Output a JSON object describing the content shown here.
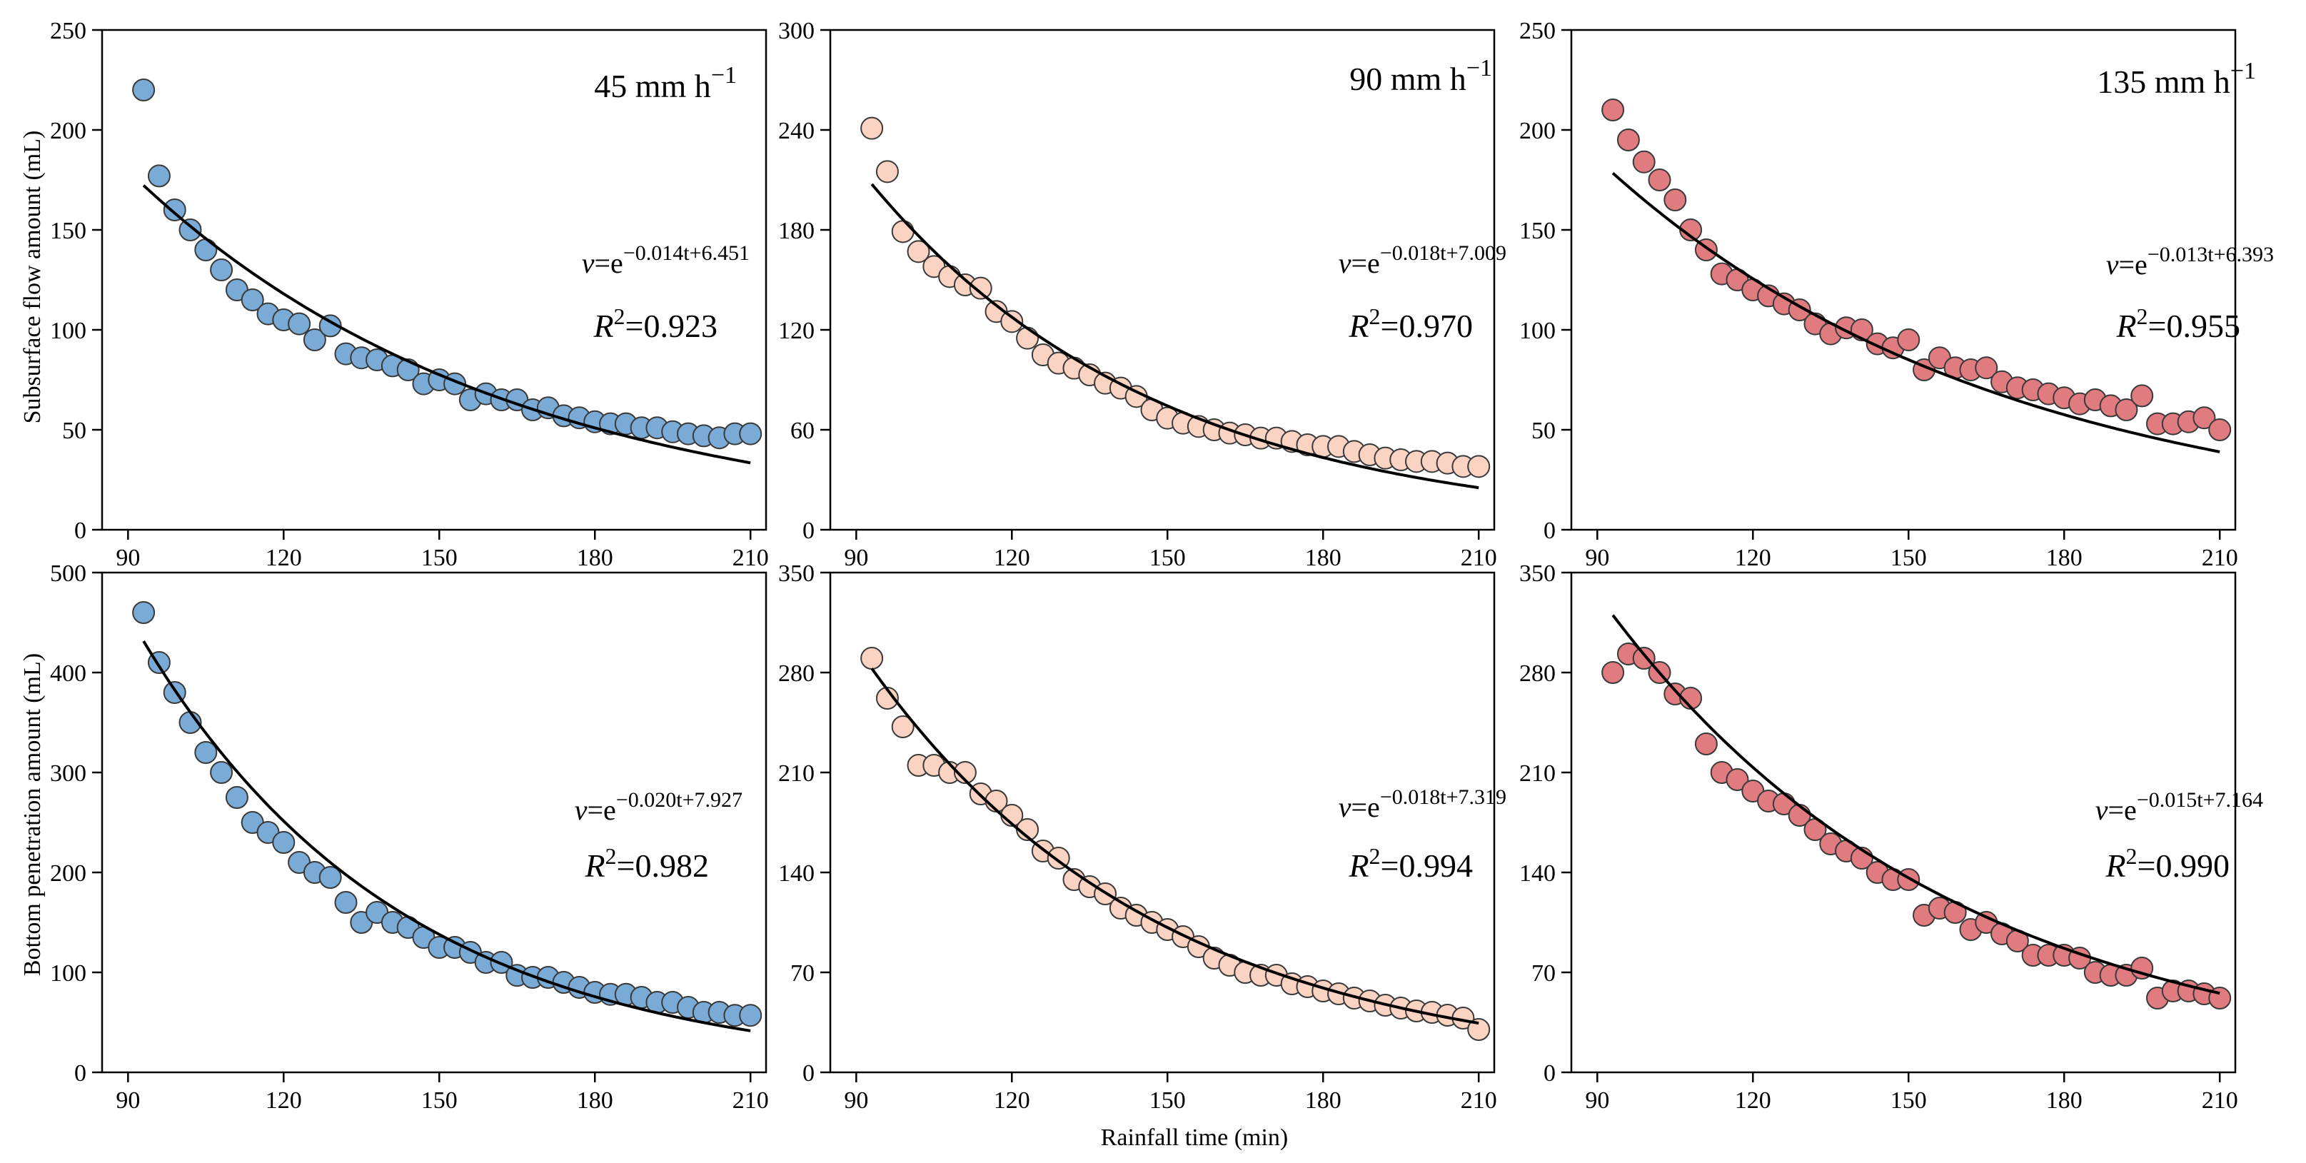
{
  "figure": {
    "xlabel": "Rainfall time (min)",
    "row_ylabels": [
      "Subsurface flow amount (mL)",
      "Bottom penetration amount (mL)"
    ],
    "colors": {
      "45": "#7aaad6",
      "90": "#fbd3c3",
      "135": "#e07b80",
      "point_stroke": "#3a3a3a",
      "fit_line": "#000000"
    }
  },
  "chart_data": [
    {
      "id": "subsurface-45",
      "type": "scatter",
      "rate_label": "45 mm h",
      "rate_unit_sup": "−1",
      "eq_prefix": "v",
      "eq_exp": "−0.014t+6.451",
      "r2_value": "=0.923",
      "ylim": [
        0,
        250
      ],
      "yticks": [
        0,
        50,
        100,
        150,
        200,
        250
      ],
      "xlim": [
        85,
        213
      ],
      "xticks": [
        90,
        120,
        150,
        180,
        210
      ],
      "color": "#7aaad6",
      "fit": {
        "a": -0.014,
        "b": 6.451,
        "x_range": [
          93,
          210
        ]
      },
      "series": [
        {
          "x": [
            93,
            96,
            99,
            102,
            105,
            108,
            111,
            114,
            117,
            120,
            123,
            126,
            129,
            132,
            135,
            138,
            141,
            144,
            147,
            150,
            153,
            156,
            159,
            162,
            165,
            168,
            171,
            174,
            177,
            180,
            183,
            186,
            189,
            192,
            195,
            198,
            201,
            204,
            207,
            210
          ],
          "y": [
            220,
            177,
            160,
            150,
            140,
            130,
            120,
            115,
            108,
            105,
            103,
            95,
            102,
            88,
            86,
            85,
            82,
            80,
            73,
            75,
            73,
            65,
            68,
            65,
            65,
            60,
            61,
            57,
            56,
            54,
            53,
            53,
            51,
            51,
            49,
            48,
            47,
            46,
            48,
            48
          ]
        }
      ]
    },
    {
      "id": "subsurface-90",
      "type": "scatter",
      "rate_label": "90 mm h",
      "rate_unit_sup": "−1",
      "eq_prefix": "v",
      "eq_exp": "−0.018t+7.009",
      "r2_value": "=0.970",
      "ylim": [
        0,
        300
      ],
      "yticks": [
        0,
        60,
        120,
        180,
        240,
        300
      ],
      "xlim": [
        85,
        213
      ],
      "xticks": [
        90,
        120,
        150,
        180,
        210
      ],
      "color": "#fbd3c3",
      "fit": {
        "a": -0.018,
        "b": 7.009,
        "x_range": [
          93,
          210
        ]
      },
      "series": [
        {
          "x": [
            93,
            96,
            99,
            102,
            105,
            108,
            111,
            114,
            117,
            120,
            123,
            126,
            129,
            132,
            135,
            138,
            141,
            144,
            147,
            150,
            153,
            156,
            159,
            162,
            165,
            168,
            171,
            174,
            177,
            180,
            183,
            186,
            189,
            192,
            195,
            198,
            201,
            204,
            207,
            210
          ],
          "y": [
            241,
            215,
            179,
            167,
            158,
            152,
            147,
            145,
            131,
            125,
            115,
            105,
            100,
            97,
            93,
            88,
            85,
            80,
            72,
            67,
            64,
            62,
            60,
            58,
            57,
            55,
            55,
            53,
            51,
            50,
            50,
            47,
            45,
            43,
            42,
            41,
            41,
            40,
            38,
            38
          ]
        }
      ]
    },
    {
      "id": "subsurface-135",
      "type": "scatter",
      "rate_label": "135 mm h",
      "rate_unit_sup": "−1",
      "eq_prefix": "v",
      "eq_exp": "−0.013t+6.393",
      "r2_value": "=0.955",
      "ylim": [
        0,
        250
      ],
      "yticks": [
        0,
        50,
        100,
        150,
        200,
        250
      ],
      "xlim": [
        85,
        213
      ],
      "xticks": [
        90,
        120,
        150,
        180,
        210
      ],
      "color": "#e07b80",
      "fit": {
        "a": -0.013,
        "b": 6.393,
        "x_range": [
          93,
          210
        ]
      },
      "series": [
        {
          "x": [
            93,
            96,
            99,
            102,
            105,
            108,
            111,
            114,
            117,
            120,
            123,
            126,
            129,
            132,
            135,
            138,
            141,
            144,
            147,
            150,
            153,
            156,
            159,
            162,
            165,
            168,
            171,
            174,
            177,
            180,
            183,
            186,
            189,
            192,
            195,
            198,
            201,
            204,
            207,
            210
          ],
          "y": [
            210,
            195,
            184,
            175,
            165,
            150,
            140,
            128,
            125,
            120,
            117,
            113,
            110,
            103,
            98,
            101,
            100,
            93,
            91,
            95,
            80,
            86,
            81,
            80,
            81,
            74,
            71,
            70,
            68,
            66,
            63,
            65,
            62,
            60,
            67,
            53,
            53,
            54,
            56,
            50
          ]
        }
      ]
    },
    {
      "id": "bottom-45",
      "type": "scatter",
      "eq_prefix": "v",
      "eq_exp": "−0.020t+7.927",
      "r2_value": "=0.982",
      "ylim": [
        0,
        500
      ],
      "yticks": [
        0,
        100,
        200,
        300,
        400,
        500
      ],
      "xlim": [
        85,
        213
      ],
      "xticks": [
        90,
        120,
        150,
        180,
        210
      ],
      "color": "#7aaad6",
      "fit": {
        "a": -0.02,
        "b": 7.927,
        "x_range": [
          93,
          210
        ]
      },
      "series": [
        {
          "x": [
            93,
            96,
            99,
            102,
            105,
            108,
            111,
            114,
            117,
            120,
            123,
            126,
            129,
            132,
            135,
            138,
            141,
            144,
            147,
            150,
            153,
            156,
            159,
            162,
            165,
            168,
            171,
            174,
            177,
            180,
            183,
            186,
            189,
            192,
            195,
            198,
            201,
            204,
            207,
            210
          ],
          "y": [
            460,
            410,
            380,
            350,
            320,
            300,
            275,
            250,
            240,
            230,
            210,
            200,
            195,
            170,
            150,
            160,
            150,
            145,
            135,
            125,
            125,
            120,
            110,
            110,
            97,
            95,
            95,
            90,
            85,
            80,
            78,
            78,
            75,
            70,
            70,
            65,
            60,
            60,
            57,
            57
          ]
        }
      ]
    },
    {
      "id": "bottom-90",
      "type": "scatter",
      "eq_prefix": "v",
      "eq_exp": "−0.018t+7.319",
      "r2_value": "=0.994",
      "ylim": [
        0,
        350
      ],
      "yticks": [
        0,
        70,
        140,
        210,
        280,
        350
      ],
      "xlim": [
        85,
        213
      ],
      "xticks": [
        90,
        120,
        150,
        180,
        210
      ],
      "color": "#fbd3c3",
      "fit": {
        "a": -0.018,
        "b": 7.319,
        "x_range": [
          93,
          210
        ]
      },
      "series": [
        {
          "x": [
            93,
            96,
            99,
            102,
            105,
            108,
            111,
            114,
            117,
            120,
            123,
            126,
            129,
            132,
            135,
            138,
            141,
            144,
            147,
            150,
            153,
            156,
            159,
            162,
            165,
            168,
            171,
            174,
            177,
            180,
            183,
            186,
            189,
            192,
            195,
            198,
            201,
            204,
            207,
            210
          ],
          "y": [
            290,
            262,
            242,
            215,
            215,
            210,
            210,
            195,
            190,
            180,
            170,
            155,
            150,
            135,
            130,
            125,
            115,
            110,
            105,
            100,
            95,
            88,
            80,
            75,
            70,
            68,
            68,
            62,
            60,
            57,
            55,
            52,
            50,
            47,
            45,
            43,
            42,
            40,
            38,
            30
          ]
        }
      ]
    },
    {
      "id": "bottom-135",
      "type": "scatter",
      "eq_prefix": "v",
      "eq_exp": "−0.015t+7.164",
      "r2_value": "=0.990",
      "ylim": [
        0,
        350
      ],
      "yticks": [
        0,
        70,
        140,
        210,
        280,
        350
      ],
      "xlim": [
        85,
        213
      ],
      "xticks": [
        90,
        120,
        150,
        180,
        210
      ],
      "color": "#e07b80",
      "fit": {
        "a": -0.015,
        "b": 7.164,
        "x_range": [
          93,
          210
        ]
      },
      "series": [
        {
          "x": [
            93,
            96,
            99,
            102,
            105,
            108,
            111,
            114,
            117,
            120,
            123,
            126,
            129,
            132,
            135,
            138,
            141,
            144,
            147,
            150,
            153,
            156,
            159,
            162,
            165,
            168,
            171,
            174,
            177,
            180,
            183,
            186,
            189,
            192,
            195,
            198,
            201,
            204,
            207,
            210
          ],
          "y": [
            280,
            293,
            290,
            280,
            265,
            262,
            230,
            210,
            205,
            197,
            190,
            188,
            180,
            170,
            160,
            155,
            150,
            140,
            135,
            135,
            110,
            115,
            112,
            100,
            105,
            97,
            92,
            82,
            82,
            82,
            80,
            70,
            68,
            68,
            73,
            52,
            57,
            57,
            55,
            52
          ]
        }
      ]
    }
  ]
}
